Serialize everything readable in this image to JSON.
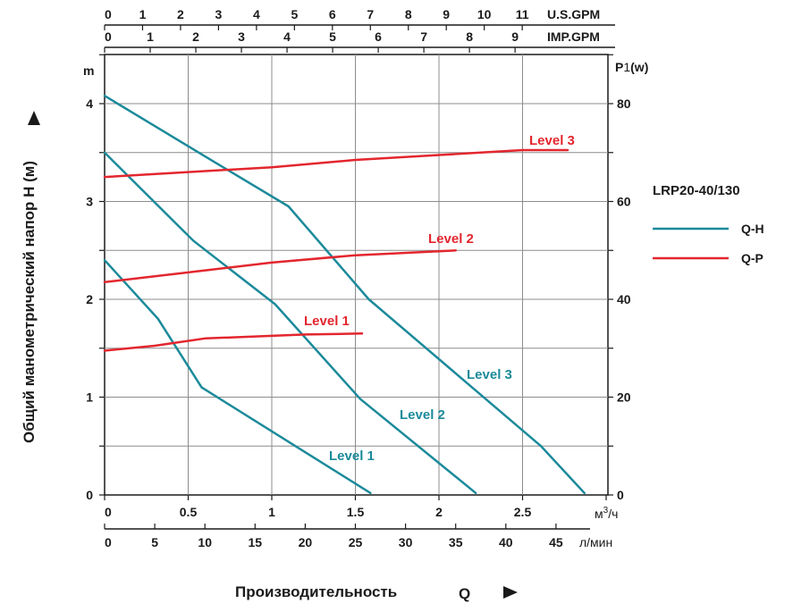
{
  "chart_data": {
    "type": "line",
    "title": "LRP20-40/130",
    "xlabel": "Производительность",
    "xlabel_symbol": "Q",
    "ylabel": "Общий манометрический напор H (м)",
    "y_unit": "m",
    "y2_unit_main": "P",
    "y2_unit_sub": "1",
    "y2_unit_suffix": "(w)",
    "x_unit_main": "м",
    "x_unit_sup": "3",
    "x_unit_suffix": "/ч",
    "x_lmin_unit": "л/мин",
    "usgpm_unit": "U.S.GPM",
    "impgpm_unit": "IMP.GPM",
    "xlim_m3h": [
      0,
      3
    ],
    "ylim_h": [
      0,
      4.5
    ],
    "ylim_p": [
      0,
      90
    ],
    "x_ticks_m3h": [
      "0",
      "0.5",
      "1",
      "1.5",
      "2",
      "2.5"
    ],
    "x_ticks_lmin": [
      "0",
      "5",
      "10",
      "15",
      "20",
      "25",
      "30",
      "35",
      "40",
      "45"
    ],
    "usgpm_ticks": [
      "0",
      "1",
      "2",
      "3",
      "4",
      "5",
      "6",
      "7",
      "8",
      "9",
      "10",
      "11"
    ],
    "impgpm_ticks": [
      "0",
      "1",
      "2",
      "3",
      "4",
      "5",
      "6",
      "7",
      "8",
      "9"
    ],
    "y_ticks_h": [
      "0",
      "1",
      "2",
      "3",
      "4"
    ],
    "y_ticks_p": [
      "0",
      "20",
      "40",
      "60",
      "80"
    ],
    "legend": [
      {
        "name": "Q-H",
        "color": "#1b8a9a"
      },
      {
        "name": "Q-P",
        "color": "#e3262e"
      }
    ],
    "series": [
      {
        "name": "Level 1",
        "kind": "Q-H",
        "color": "#1b8a9a",
        "x": [
          0,
          0.32,
          0.58,
          1.59
        ],
        "y": [
          2.4,
          1.8,
          1.1,
          0.02
        ]
      },
      {
        "name": "Level 2",
        "kind": "Q-H",
        "color": "#1b8a9a",
        "x": [
          0,
          0.53,
          1.02,
          1.53,
          2.22
        ],
        "y": [
          3.5,
          2.6,
          1.95,
          0.98,
          0.02
        ]
      },
      {
        "name": "Level 3",
        "kind": "Q-H",
        "color": "#1b8a9a",
        "x": [
          0,
          0.66,
          1.1,
          1.58,
          2.61,
          2.87
        ],
        "y": [
          4.08,
          3.4,
          2.95,
          2.0,
          0.5,
          0.02
        ]
      },
      {
        "name": "Level 1",
        "kind": "Q-P",
        "color": "#e3262e",
        "x": [
          0,
          0.3,
          0.6,
          1.2,
          1.54
        ],
        "y": [
          29.5,
          30.5,
          32,
          32.8,
          33
        ]
      },
      {
        "name": "Level 2",
        "kind": "Q-P",
        "color": "#e3262e",
        "x": [
          0,
          0.5,
          1.0,
          1.5,
          2.1
        ],
        "y": [
          43.5,
          45.5,
          47.5,
          49,
          50
        ]
      },
      {
        "name": "Level 3",
        "kind": "Q-P",
        "color": "#e3262e",
        "x": [
          0,
          1.0,
          1.5,
          2.0,
          2.5,
          2.77
        ],
        "y": [
          65,
          67,
          68.5,
          69.5,
          70.5,
          70.5
        ]
      }
    ],
    "series_labels": [
      {
        "text": "Level 1",
        "color": "#e3262e"
      },
      {
        "text": "Level 2",
        "color": "#e3262e"
      },
      {
        "text": "Level 3",
        "color": "#e3262e"
      },
      {
        "text": "Level 1",
        "color": "#1b8a9a"
      },
      {
        "text": "Level 2",
        "color": "#1b8a9a"
      },
      {
        "text": "Level 3",
        "color": "#1b8a9a"
      }
    ]
  }
}
